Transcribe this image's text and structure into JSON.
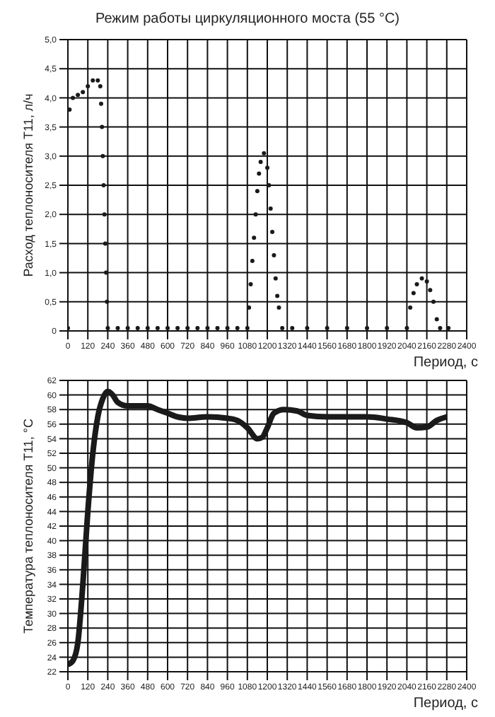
{
  "chart_data": [
    {
      "type": "scatter",
      "title": "Режим работы циркуляционного моста (55 °С)",
      "xlabel": "Период, с",
      "ylabel": "Расход теплоносителя Т11, л/ч",
      "xlim": [
        0,
        2400
      ],
      "xticks": [
        0,
        120,
        240,
        360,
        480,
        600,
        720,
        840,
        960,
        1080,
        1200,
        1320,
        1440,
        1560,
        1680,
        1800,
        1920,
        2040,
        2160,
        2280,
        2400
      ],
      "ylim": [
        0,
        5
      ],
      "yticks": [
        0,
        {
          "value": 0.5,
          "label": "0,5"
        },
        {
          "value": 1,
          "label": "1,0"
        },
        {
          "value": 1.5,
          "label": "1,5"
        },
        {
          "value": 2,
          "label": "2,0"
        },
        {
          "value": 2.5,
          "label": "2,5"
        },
        {
          "value": 3,
          "label": "3,0"
        },
        {
          "value": 3.5,
          "label": "3,5"
        },
        {
          "value": 4,
          "label": "4,0"
        },
        {
          "value": 4.5,
          "label": "4,5"
        },
        {
          "value": 5,
          "label": "5,0"
        }
      ],
      "grid": true,
      "legend": false,
      "marker": "circle",
      "series": [
        {
          "color": "#1a1a1a",
          "x": [
            0,
            10,
            30,
            60,
            90,
            120,
            150,
            180,
            195,
            200,
            205,
            210,
            215,
            220,
            225,
            230,
            235,
            240,
            300,
            360,
            420,
            480,
            540,
            600,
            660,
            720,
            780,
            840,
            900,
            960,
            1020,
            1080,
            1090,
            1100,
            1110,
            1120,
            1130,
            1140,
            1150,
            1160,
            1180,
            1200,
            1210,
            1220,
            1230,
            1240,
            1250,
            1260,
            1270,
            1290,
            1350,
            1440,
            1560,
            1680,
            1800,
            1920,
            2040,
            2060,
            2080,
            2100,
            2130,
            2160,
            2180,
            2200,
            2220,
            2240,
            2290
          ],
          "values": [
            0.05,
            3.8,
            4.0,
            4.05,
            4.1,
            4.2,
            4.3,
            4.3,
            4.2,
            3.9,
            3.5,
            3.0,
            2.5,
            2.0,
            1.5,
            1.0,
            0.5,
            0.05,
            0.05,
            0.05,
            0.05,
            0.05,
            0.05,
            0.05,
            0.05,
            0.05,
            0.05,
            0.05,
            0.05,
            0.05,
            0.05,
            0.05,
            0.4,
            0.8,
            1.2,
            1.6,
            2.0,
            2.4,
            2.7,
            2.9,
            3.05,
            2.8,
            2.5,
            2.1,
            1.7,
            1.3,
            0.9,
            0.6,
            0.4,
            0.05,
            0.05,
            0.05,
            0.05,
            0.05,
            0.05,
            0.05,
            0.05,
            0.4,
            0.65,
            0.8,
            0.9,
            0.85,
            0.7,
            0.5,
            0.2,
            0.05,
            0.05
          ]
        }
      ]
    },
    {
      "type": "line",
      "xlabel": "Период, с",
      "ylabel": "Температура теплоносителя Т11, °С",
      "xlim": [
        0,
        2400
      ],
      "xticks": [
        0,
        120,
        240,
        360,
        480,
        600,
        720,
        840,
        960,
        1080,
        1200,
        1320,
        1440,
        1560,
        1680,
        1800,
        1920,
        2040,
        2160,
        2280,
        2400
      ],
      "ylim": [
        22,
        62
      ],
      "yticks": [
        22,
        24,
        26,
        28,
        30,
        32,
        34,
        36,
        38,
        40,
        42,
        44,
        46,
        48,
        50,
        52,
        54,
        56,
        58,
        60,
        62
      ],
      "grid": true,
      "legend": false,
      "marker": "none",
      "line_style": "solid",
      "series": [
        {
          "color": "#1a1a1a",
          "x": [
            0,
            30,
            60,
            90,
            120,
            150,
            180,
            210,
            240,
            270,
            300,
            360,
            420,
            480,
            540,
            600,
            660,
            720,
            840,
            960,
            1020,
            1080,
            1140,
            1170,
            1200,
            1240,
            1300,
            1380,
            1440,
            1560,
            1680,
            1800,
            1920,
            2040,
            2100,
            2160,
            2220,
            2280
          ],
          "values": [
            23,
            23.5,
            26,
            34,
            44,
            52,
            57,
            59.5,
            60.5,
            60,
            59,
            58.5,
            58.5,
            58.5,
            58,
            57.5,
            57,
            56.8,
            57,
            56.8,
            56.5,
            55.5,
            54,
            54.2,
            55.5,
            57.5,
            58,
            57.8,
            57.2,
            57,
            57,
            57,
            56.7,
            56.2,
            55.5,
            55.6,
            56.5,
            57
          ]
        }
      ]
    }
  ]
}
